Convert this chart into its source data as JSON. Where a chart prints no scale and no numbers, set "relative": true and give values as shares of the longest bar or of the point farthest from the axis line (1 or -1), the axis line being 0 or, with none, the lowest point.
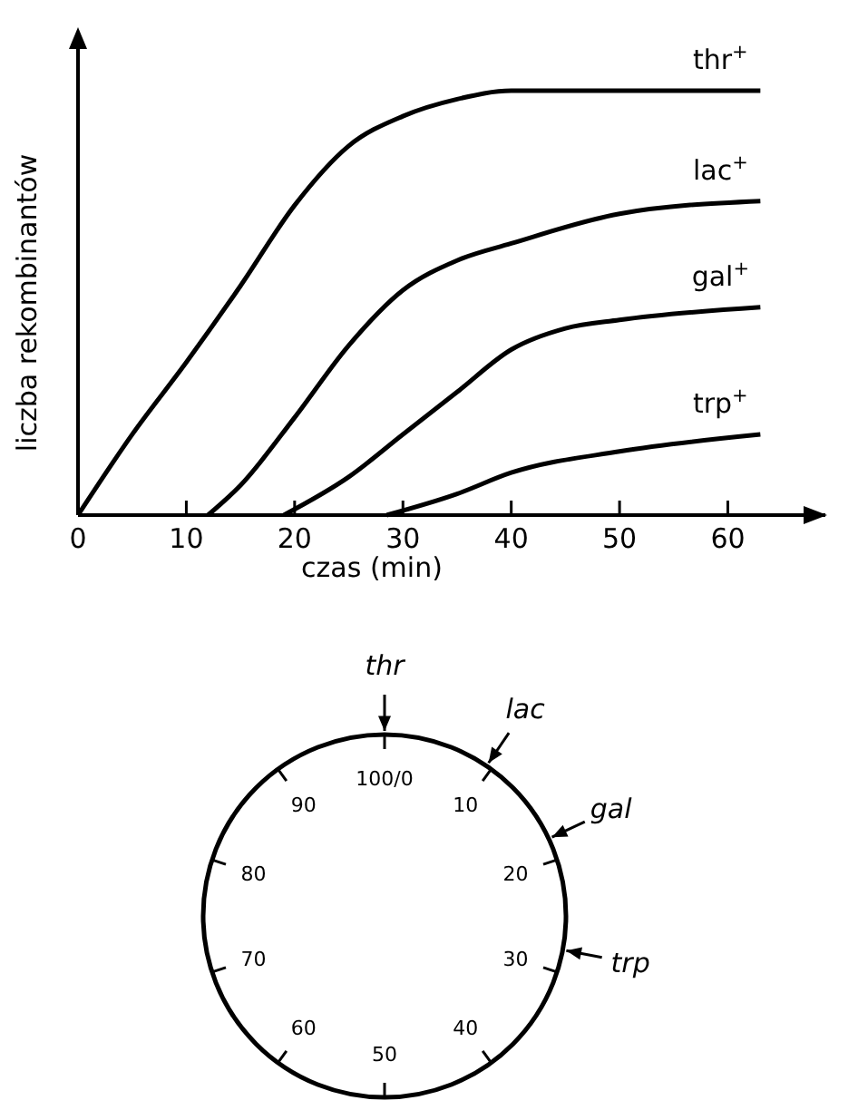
{
  "chart_data": [
    {
      "type": "line",
      "relative": true,
      "xlabel": "czas (min)",
      "ylabel": "liczba rekombinantów",
      "xlim": [
        0,
        69
      ],
      "xticks": [
        0,
        10,
        20,
        30,
        40,
        50,
        60
      ],
      "grid": false,
      "marker": "none",
      "line_style": "solid",
      "series": [
        {
          "name": "thr$^{+}$",
          "color": "#000000",
          "x": [
            0,
            5,
            10,
            15,
            20,
            25,
            30,
            35,
            40,
            50,
            63
          ],
          "values": [
            0,
            0.19,
            0.36,
            0.54,
            0.73,
            0.87,
            0.94,
            0.98,
            1,
            1,
            1
          ]
        },
        {
          "name": "lac$^{+}$",
          "color": "#000000",
          "x": [
            12,
            15,
            20,
            25,
            30,
            35,
            40,
            50,
            63
          ],
          "values": [
            0,
            0.07,
            0.23,
            0.4,
            0.53,
            0.6,
            0.64,
            0.71,
            0.74
          ]
        },
        {
          "name": "gal$^{+}$",
          "color": "#000000",
          "x": [
            19,
            25,
            30,
            35,
            40,
            45,
            50,
            63
          ],
          "values": [
            0,
            0.09,
            0.19,
            0.29,
            0.39,
            0.44,
            0.46,
            0.49
          ]
        },
        {
          "name": "trp$^{+}$",
          "color": "#000000",
          "x": [
            28.5,
            35,
            40,
            50,
            63
          ],
          "values": [
            0,
            0.05,
            0.1,
            0.15,
            0.19
          ]
        }
      ]
    },
    {
      "type": "other",
      "categories": [
        "100/0",
        "10",
        "20",
        "30",
        "40",
        "50",
        "60",
        "70",
        "80",
        "90"
      ],
      "annotations": [
        "thr",
        "lac",
        "gal",
        "trp"
      ]
    }
  ]
}
